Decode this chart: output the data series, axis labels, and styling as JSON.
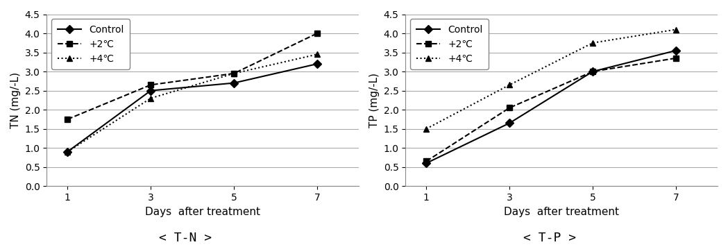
{
  "days": [
    1,
    3,
    5,
    7
  ],
  "tn": {
    "control": [
      0.9,
      2.5,
      2.7,
      3.2
    ],
    "plus2": [
      1.75,
      2.65,
      2.95,
      4.0
    ],
    "plus4": [
      0.9,
      2.3,
      2.95,
      3.45
    ]
  },
  "tp": {
    "control": [
      0.6,
      1.65,
      3.0,
      3.55
    ],
    "plus2": [
      0.65,
      2.05,
      3.0,
      3.35
    ],
    "plus4": [
      1.5,
      2.65,
      3.75,
      4.1
    ]
  },
  "ylabel_tn": "TN (mg/-L)",
  "ylabel_tp": "TP (mg/-L)",
  "xlabel": "Days  after treatment",
  "ylim": [
    0.0,
    4.5
  ],
  "yticks": [
    0.0,
    0.5,
    1.0,
    1.5,
    2.0,
    2.5,
    3.0,
    3.5,
    4.0,
    4.5
  ],
  "xticks": [
    1,
    3,
    5,
    7
  ],
  "legend_labels": [
    "Control",
    "+2℃",
    "+4℃"
  ],
  "caption_tn": "< T-N >",
  "caption_tp": "< T-P >",
  "color_control": "#000000",
  "color_plus2": "#000000",
  "color_plus4": "#000000",
  "bg_color": "#ffffff",
  "grid_color": "#aaaaaa",
  "caption_fontsize": 13,
  "axis_label_fontsize": 11,
  "tick_fontsize": 10,
  "legend_fontsize": 10
}
